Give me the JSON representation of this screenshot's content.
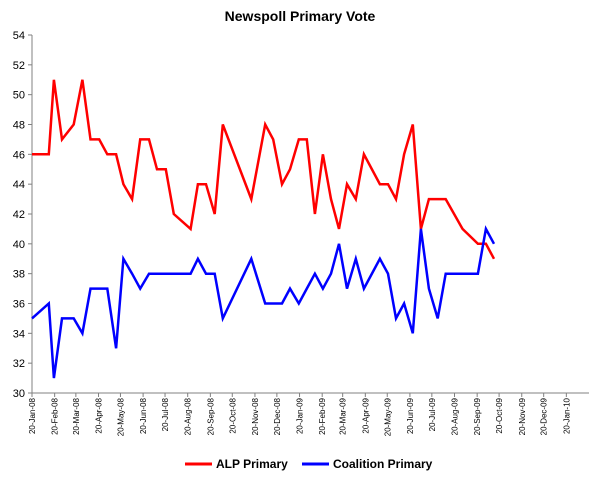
{
  "chart_data": {
    "type": "line",
    "title": "Newspoll Primary Vote",
    "xlabel": "",
    "ylabel": "",
    "ylim": [
      30,
      54
    ],
    "yticks": [
      30,
      32,
      34,
      36,
      38,
      40,
      42,
      44,
      46,
      48,
      50,
      52,
      54
    ],
    "x_tick_labels": [
      "20-Jan-08",
      "20-Feb-08",
      "20-Mar-08",
      "20-Apr-08",
      "20-May-08",
      "20-Jun-08",
      "20-Jul-08",
      "20-Aug-08",
      "20-Sep-08",
      "20-Oct-08",
      "20-Nov-08",
      "20-Dec-08",
      "20-Jan-09",
      "20-Feb-09",
      "20-Mar-09",
      "20-Apr-09",
      "20-May-09",
      "20-Jun-09",
      "20-Jul-09",
      "20-Aug-09",
      "20-Sep-09",
      "20-Oct-09",
      "20-Nov-09",
      "20-Dec-09",
      "20-Jan-10"
    ],
    "xlim": [
      "2008-01-20",
      "2010-02-20"
    ],
    "grid": false,
    "legend_position": "bottom",
    "series": [
      {
        "name": "ALP Primary",
        "color": "#ff0000",
        "points": [
          [
            "2008-01-20",
            46
          ],
          [
            "2008-02-12",
            46
          ],
          [
            "2008-02-19",
            51
          ],
          [
            "2008-03-01",
            47
          ],
          [
            "2008-03-17",
            48
          ],
          [
            "2008-03-29",
            51
          ],
          [
            "2008-04-09",
            47
          ],
          [
            "2008-04-21",
            47
          ],
          [
            "2008-05-02",
            46
          ],
          [
            "2008-05-14",
            46
          ],
          [
            "2008-05-24",
            44
          ],
          [
            "2008-06-05",
            43
          ],
          [
            "2008-06-16",
            47
          ],
          [
            "2008-06-28",
            47
          ],
          [
            "2008-07-09",
            45
          ],
          [
            "2008-07-21",
            45
          ],
          [
            "2008-08-01",
            42
          ],
          [
            "2008-08-24",
            41
          ],
          [
            "2008-09-03",
            44
          ],
          [
            "2008-09-14",
            44
          ],
          [
            "2008-09-26",
            42
          ],
          [
            "2008-10-07",
            48
          ],
          [
            "2008-11-15",
            43
          ],
          [
            "2008-12-04",
            48
          ],
          [
            "2008-12-15",
            47
          ],
          [
            "2008-12-27",
            44
          ],
          [
            "2009-01-07",
            45
          ],
          [
            "2009-01-19",
            47
          ],
          [
            "2009-01-30",
            47
          ],
          [
            "2009-02-10",
            42
          ],
          [
            "2009-02-21",
            46
          ],
          [
            "2009-03-04",
            43
          ],
          [
            "2009-03-15",
            41
          ],
          [
            "2009-03-26",
            44
          ],
          [
            "2009-04-07",
            43
          ],
          [
            "2009-04-18",
            46
          ],
          [
            "2009-05-10",
            44
          ],
          [
            "2009-05-21",
            44
          ],
          [
            "2009-06-01",
            43
          ],
          [
            "2009-06-12",
            46
          ],
          [
            "2009-06-24",
            48
          ],
          [
            "2009-07-05",
            41
          ],
          [
            "2009-07-16",
            43
          ],
          [
            "2009-07-28",
            43
          ],
          [
            "2009-08-08",
            43
          ],
          [
            "2009-08-31",
            41
          ],
          [
            "2009-09-21",
            40
          ],
          [
            "2009-10-02",
            40
          ],
          [
            "2009-10-13",
            39
          ]
        ]
      },
      {
        "name": "Coalition Primary",
        "color": "#0000ff",
        "points": [
          [
            "2008-01-20",
            35
          ],
          [
            "2008-02-12",
            36
          ],
          [
            "2008-02-19",
            31
          ],
          [
            "2008-03-01",
            35
          ],
          [
            "2008-03-17",
            35
          ],
          [
            "2008-03-29",
            34
          ],
          [
            "2008-04-09",
            37
          ],
          [
            "2008-04-21",
            37
          ],
          [
            "2008-05-02",
            37
          ],
          [
            "2008-05-14",
            33
          ],
          [
            "2008-05-24",
            39
          ],
          [
            "2008-06-05",
            38
          ],
          [
            "2008-06-16",
            37
          ],
          [
            "2008-06-28",
            38
          ],
          [
            "2008-07-09",
            38
          ],
          [
            "2008-07-21",
            38
          ],
          [
            "2008-08-01",
            38
          ],
          [
            "2008-08-24",
            38
          ],
          [
            "2008-09-03",
            39
          ],
          [
            "2008-09-14",
            38
          ],
          [
            "2008-09-26",
            38
          ],
          [
            "2008-10-07",
            35
          ],
          [
            "2008-11-15",
            39
          ],
          [
            "2008-12-04",
            36
          ],
          [
            "2008-12-15",
            36
          ],
          [
            "2008-12-27",
            36
          ],
          [
            "2009-01-07",
            37
          ],
          [
            "2009-01-19",
            36
          ],
          [
            "2009-01-30",
            37
          ],
          [
            "2009-02-10",
            38
          ],
          [
            "2009-02-21",
            37
          ],
          [
            "2009-03-04",
            38
          ],
          [
            "2009-03-15",
            40
          ],
          [
            "2009-03-26",
            37
          ],
          [
            "2009-04-07",
            39
          ],
          [
            "2009-04-18",
            37
          ],
          [
            "2009-05-10",
            39
          ],
          [
            "2009-05-21",
            38
          ],
          [
            "2009-06-01",
            35
          ],
          [
            "2009-06-12",
            36
          ],
          [
            "2009-06-24",
            34
          ],
          [
            "2009-07-05",
            41
          ],
          [
            "2009-07-16",
            37
          ],
          [
            "2009-07-28",
            35
          ],
          [
            "2009-08-08",
            38
          ],
          [
            "2009-08-31",
            38
          ],
          [
            "2009-09-21",
            38
          ],
          [
            "2009-10-02",
            41
          ],
          [
            "2009-10-13",
            40
          ]
        ]
      }
    ]
  }
}
